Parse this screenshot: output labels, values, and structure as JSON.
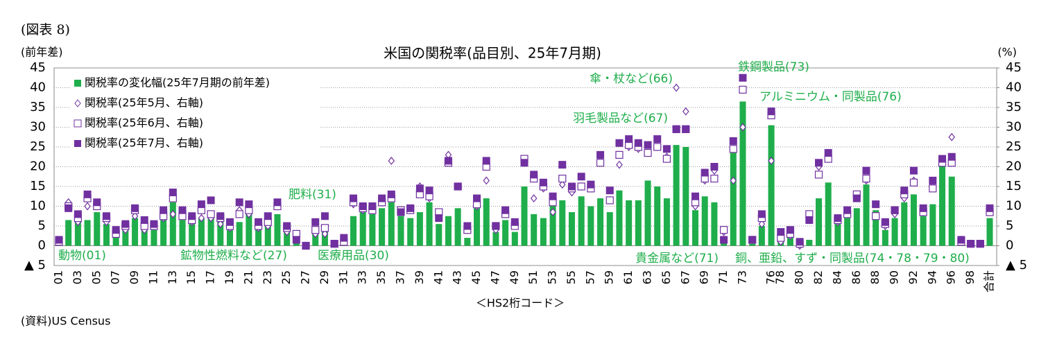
{
  "figure_label": "(図表 8)",
  "source": "(資料)US Census",
  "chart_data": {
    "type": "bar",
    "title": "米国の関税率(品目別、25年7月期)",
    "y_axis_label": "(前年差)",
    "y2_axis_label": "(%)",
    "x_axis_label": "＜HS2桁コード＞",
    "categories": [
      "01",
      null,
      "03",
      null,
      "05",
      null,
      "07",
      null,
      "09",
      null,
      "11",
      null,
      "13",
      null,
      "15",
      null,
      "17",
      null,
      "19",
      null,
      "21",
      null,
      "23",
      null,
      "25",
      null,
      "27",
      null,
      "29",
      null,
      "31",
      null,
      "33",
      null,
      "35",
      null,
      "37",
      null,
      "39",
      null,
      "41",
      null,
      "43",
      null,
      "45",
      null,
      "47",
      null,
      "49",
      null,
      "51",
      null,
      "53",
      null,
      "55",
      null,
      "57",
      null,
      "59",
      null,
      "61",
      null,
      "63",
      null,
      "65",
      null,
      "67",
      null,
      "69",
      null,
      "71",
      null,
      "73",
      null,
      null,
      "76",
      "78",
      null,
      "80",
      null,
      "82",
      null,
      "84",
      null,
      "86",
      null,
      "88",
      null,
      "90",
      null,
      "92",
      null,
      "94",
      null,
      "96",
      null,
      "98",
      null,
      "合計"
    ],
    "series": [
      {
        "name": "関税率の変化幅(25年7月期の前年差)",
        "color": "#1fae4b",
        "marker": "bar",
        "values": [
          0,
          6.5,
          6,
          6.5,
          8.5,
          5.5,
          2.5,
          4,
          7,
          4.5,
          4,
          6.5,
          11,
          6.5,
          5.5,
          7,
          8,
          6.5,
          4,
          6,
          8,
          5.5,
          5,
          8,
          4,
          1.5,
          0,
          3,
          4.5,
          0,
          0.5,
          7.5,
          8.5,
          8,
          9.5,
          11,
          7.5,
          7,
          8.5,
          11,
          5.5,
          7.5,
          9.5,
          2,
          9.5,
          12,
          3.5,
          6.5,
          3.5,
          15,
          8,
          7,
          10.5,
          11.5,
          8.5,
          12.5,
          10,
          12,
          8.5,
          14,
          11.5,
          11.5,
          16.5,
          15,
          12,
          25.5,
          25,
          9,
          12.5,
          11,
          1,
          23.5,
          36.5,
          0.5,
          5,
          30.5,
          2,
          2,
          0,
          1.5,
          12,
          16,
          5.5,
          7,
          9.5,
          15.5,
          9,
          4,
          7,
          11,
          13,
          7.5,
          10.5,
          20.5,
          17.5,
          0,
          0,
          0,
          7
        ]
      },
      {
        "name": "関税率(25年5月、右軸)",
        "color": "#7030a0",
        "marker": "diamond",
        "axis": "y2",
        "values": [
          1,
          11,
          6,
          10,
          10,
          6,
          3,
          4,
          7.5,
          4,
          5,
          7,
          8,
          7.5,
          6,
          7,
          7,
          5.5,
          4.5,
          9,
          8,
          4.5,
          5,
          10,
          3.5,
          3,
          0,
          3,
          3,
          0.5,
          1,
          10.5,
          9,
          9,
          11,
          21.5,
          9,
          9,
          15,
          12,
          7.5,
          23,
          15,
          4,
          10,
          16.5,
          4,
          8,
          5.5,
          21,
          12,
          14.5,
          8.5,
          15.5,
          13.5,
          15,
          14.5,
          21.5,
          11.5,
          20.5,
          25,
          24.5,
          23.5,
          25,
          22.5,
          40,
          34,
          10,
          16.5,
          19,
          3.5,
          16.5,
          30,
          1.5,
          5.5,
          21.5,
          1,
          2.5,
          0,
          7,
          20,
          22.5,
          6,
          8,
          12.5,
          16.5,
          7.5,
          5,
          8,
          12,
          16.5,
          8.5,
          15,
          21,
          27.5,
          1.5,
          0.5,
          0.5,
          8.5
        ]
      },
      {
        "name": "関税率(25年6月、右軸)",
        "color": "#7030a0",
        "marker": "open-square",
        "axis": "y2",
        "values": [
          1,
          10,
          7,
          12,
          10,
          7,
          3,
          5,
          9,
          5,
          5,
          7.5,
          12,
          7.5,
          6.5,
          9,
          8,
          7,
          5,
          8,
          9,
          5,
          6,
          10,
          4.5,
          3,
          0,
          4,
          4.5,
          0.5,
          1,
          11,
          9.5,
          9,
          11,
          12,
          9,
          9,
          13,
          12.5,
          8.5,
          21,
          15,
          4,
          10.5,
          20,
          5,
          8,
          5,
          22,
          17,
          15,
          11,
          17,
          14.5,
          15,
          14.5,
          21,
          11.5,
          23,
          25.5,
          25,
          23.5,
          25,
          22,
          29.5,
          29.5,
          11,
          17,
          17,
          4,
          24.5,
          39.5,
          1.5,
          7,
          33,
          2,
          3,
          0.5,
          8,
          18,
          22,
          6.5,
          8,
          13,
          17,
          7.5,
          5.5,
          9,
          13,
          16,
          8.5,
          14.5,
          21,
          21,
          1,
          0.5,
          0.5,
          8.5
        ]
      },
      {
        "name": "関税率(25年7月、右軸)",
        "color": "#7030a0",
        "marker": "square",
        "axis": "y2",
        "values": [
          1.5,
          9.5,
          8,
          13,
          11,
          7.5,
          4,
          5.5,
          9.5,
          6.5,
          5.5,
          9,
          13.5,
          9,
          7.5,
          10.5,
          11.5,
          7.5,
          6,
          11,
          10.5,
          6,
          7.5,
          11,
          5,
          1.5,
          0,
          6,
          7.5,
          0.5,
          2,
          12,
          10,
          10,
          12,
          13,
          8.5,
          9.5,
          14.5,
          14,
          7,
          21.5,
          15,
          5,
          12,
          21.5,
          5,
          9,
          6,
          21,
          18,
          16,
          12.5,
          20.5,
          15,
          17.5,
          15.5,
          23,
          14,
          26,
          27,
          26,
          25.5,
          27,
          24.5,
          29.5,
          29.5,
          12.5,
          18.5,
          20,
          1.5,
          26.5,
          42.5,
          1.5,
          8,
          34,
          3.5,
          4,
          1,
          6.5,
          21,
          23.5,
          7,
          9,
          12,
          19,
          10.5,
          6,
          9,
          14,
          19,
          9.5,
          16.5,
          22,
          22.5,
          1.5,
          0.5,
          0.5,
          9.5
        ]
      }
    ],
    "ylim": [
      -5,
      45
    ],
    "yticks": [
      {
        "value": -5,
        "label": "▲ 5"
      },
      0,
      5,
      10,
      15,
      20,
      25,
      30,
      35,
      40,
      45
    ],
    "y2lim": [
      -5,
      45
    ],
    "y2ticks": [
      {
        "value": -5,
        "label": "▲ 5"
      },
      0,
      5,
      10,
      15,
      20,
      25,
      30,
      35,
      40,
      45
    ],
    "grid": true,
    "legend": "upper left",
    "annotations": [
      "動物(01)",
      "鉱物性燃料など(27)",
      "医療用品(30)",
      "肥料(31)",
      "傘・杖など(66)",
      "羽毛製品など(67)",
      "鉄鋼製品(73)",
      "アルミニウム・同製品(76)",
      "貴金属など(71)",
      "銅、亜鉛、すず・同製品(74・78・79・80)"
    ],
    "annotation_color": "#1fae4b"
  }
}
